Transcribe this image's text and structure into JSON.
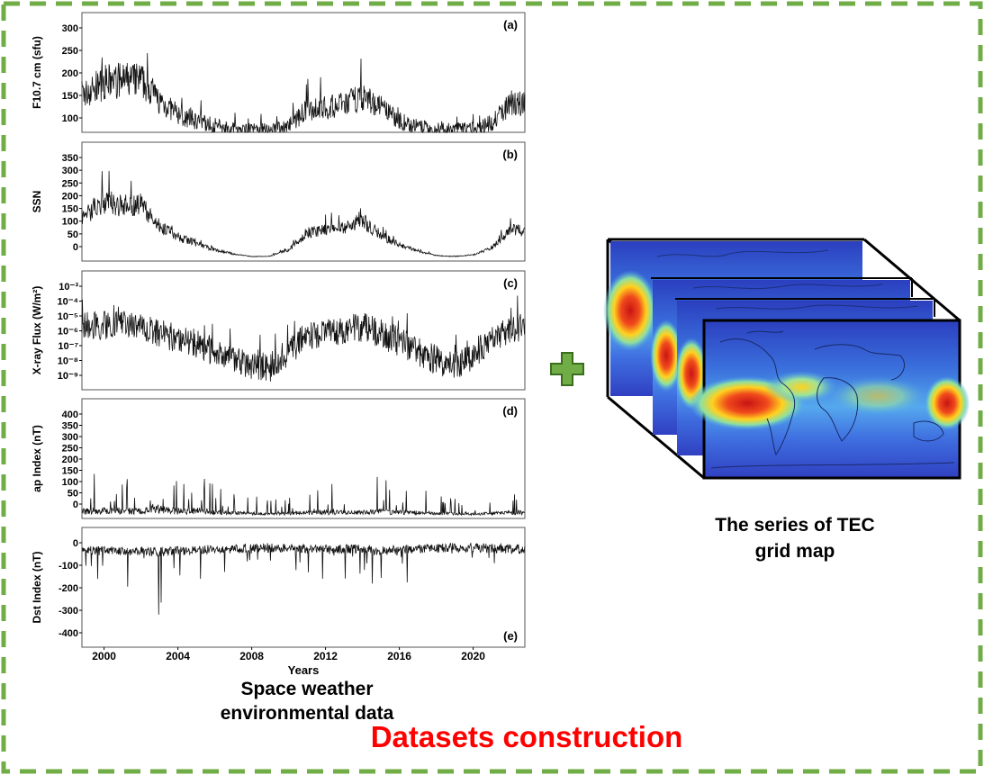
{
  "figure": {
    "border_color": "#70ad47",
    "title": "Datasets construction",
    "title_color": "#ff0000",
    "plus_symbol": "+",
    "plus_color": "#70ad47",
    "plus_outline": "#3a6e1e"
  },
  "left_block": {
    "caption_line1": "Space weather",
    "caption_line2": "environmental data",
    "xlabel": "Years",
    "x_ticks": [
      "2000",
      "2004",
      "2008",
      "2012",
      "2016",
      "2020"
    ],
    "panels": [
      {
        "id": "a",
        "tag": "(a)",
        "ylabel": "F10.7 cm (sfu)",
        "y_ticks": [
          "300",
          "250",
          "200",
          "150",
          "100"
        ],
        "chart_data": {
          "type": "line",
          "x": [
            1999,
            2000,
            2001,
            2002,
            2003,
            2004,
            2005,
            2006,
            2007,
            2008,
            2009,
            2010,
            2011,
            2012,
            2013,
            2014,
            2015,
            2016,
            2017,
            2018,
            2019,
            2020,
            2021,
            2022
          ],
          "values": [
            150,
            175,
            180,
            180,
            135,
            105,
            90,
            80,
            73,
            70,
            70,
            80,
            115,
            120,
            125,
            145,
            120,
            90,
            77,
            70,
            70,
            72,
            85,
            130
          ],
          "ylim": [
            65,
            330
          ]
        }
      },
      {
        "id": "b",
        "tag": "(b)",
        "ylabel": "SSN",
        "y_ticks": [
          "350",
          "300",
          "250",
          "200",
          "150",
          "100",
          "50",
          "0"
        ],
        "chart_data": {
          "type": "line",
          "x": [
            1999,
            2000,
            2001,
            2002,
            2003,
            2004,
            2005,
            2006,
            2007,
            2008,
            2009,
            2010,
            2011,
            2012,
            2013,
            2014,
            2015,
            2016,
            2017,
            2018,
            2019,
            2020,
            2021,
            2022
          ],
          "values": [
            135,
            175,
            165,
            165,
            100,
            65,
            45,
            25,
            12,
            4,
            5,
            25,
            80,
            85,
            95,
            115,
            70,
            40,
            22,
            7,
            4,
            9,
            30,
            85
          ],
          "ylim": [
            -10,
            360
          ]
        }
      },
      {
        "id": "c",
        "tag": "(c)",
        "ylabel": "X-ray Flux (W/m²)",
        "y_ticks": [
          "10⁻³",
          "10⁻⁴",
          "10⁻⁵",
          "10⁻⁶",
          "10⁻⁷",
          "10⁻⁸",
          "10⁻⁹"
        ],
        "chart_data": {
          "type": "line",
          "log_scale": true,
          "x": [
            1999,
            2000,
            2001,
            2002,
            2003,
            2004,
            2005,
            2006,
            2007,
            2008,
            2009,
            2010,
            2011,
            2012,
            2013,
            2014,
            2015,
            2016,
            2017,
            2018,
            2019,
            2020,
            2021,
            2022
          ],
          "values": [
            -5.8,
            -5.7,
            -5.7,
            -5.8,
            -6.2,
            -6.4,
            -6.7,
            -7.1,
            -7.5,
            -7.9,
            -8.0,
            -7.2,
            -6.3,
            -6.1,
            -6.0,
            -5.8,
            -6.2,
            -6.6,
            -7.1,
            -7.6,
            -7.9,
            -7.3,
            -6.5,
            -5.9
          ],
          "ylim": [
            -9.2,
            -2.8
          ]
        }
      },
      {
        "id": "d",
        "tag": "(d)",
        "ylabel": "ap Index (nT)",
        "y_ticks": [
          "400",
          "350",
          "300",
          "250",
          "200",
          "150",
          "100",
          "50",
          "0"
        ],
        "chart_data": {
          "type": "line",
          "x": [
            1999,
            2000,
            2001,
            2002,
            2003,
            2004,
            2005,
            2006,
            2007,
            2008,
            2009,
            2010,
            2011,
            2012,
            2013,
            2014,
            2015,
            2016,
            2017,
            2018,
            2019,
            2020,
            2021,
            2022
          ],
          "values": [
            14,
            16,
            15,
            14,
            20,
            14,
            16,
            10,
            8,
            7,
            5,
            7,
            9,
            11,
            10,
            10,
            14,
            11,
            9,
            7,
            6,
            5,
            7,
            10
          ],
          "ylim": [
            -10,
            410
          ]
        }
      },
      {
        "id": "e",
        "tag": "(e)",
        "ylabel": "Dst Index (nT)",
        "y_ticks": [
          "0",
          "-100",
          "-200",
          "-300",
          "-400"
        ],
        "chart_data": {
          "type": "line",
          "x": [
            1999,
            2000,
            2001,
            2002,
            2003,
            2004,
            2005,
            2006,
            2007,
            2008,
            2009,
            2010,
            2011,
            2012,
            2013,
            2014,
            2015,
            2016,
            2017,
            2018,
            2019,
            2020,
            2021,
            2022
          ],
          "values": [
            -18,
            -20,
            -20,
            -18,
            -25,
            -18,
            -20,
            -12,
            -10,
            -8,
            -6,
            -8,
            -10,
            -14,
            -12,
            -12,
            -18,
            -14,
            -10,
            -8,
            -6,
            -6,
            -8,
            -12
          ],
          "ylim": [
            -430,
            80
          ]
        }
      }
    ]
  },
  "right_block": {
    "caption_line1": "The series of TEC",
    "caption_line2": "grid map",
    "colors": {
      "low": "#2040c8",
      "mid": "#55c8e8",
      "high": "#ffe020",
      "peak": "#d42818"
    }
  }
}
